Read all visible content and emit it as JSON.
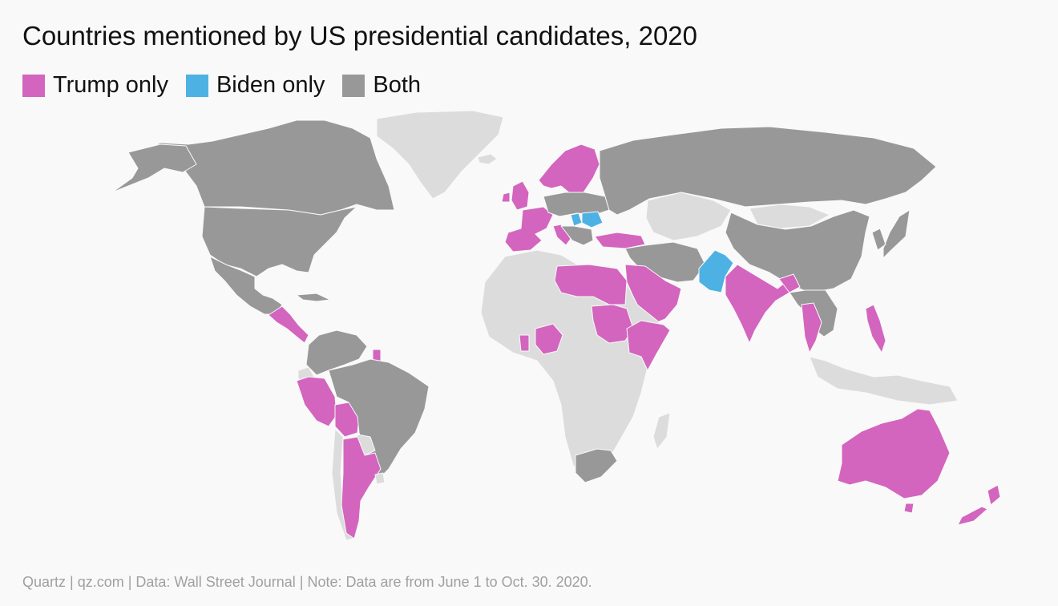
{
  "title": "Countries mentioned by US presidential candidates, 2020",
  "legend": [
    {
      "label": "Trump only",
      "color": "#d365be"
    },
    {
      "label": "Biden only",
      "color": "#4eb1e3"
    },
    {
      "label": "Both",
      "color": "#989898"
    }
  ],
  "colors": {
    "trump_only": "#d365be",
    "biden_only": "#4eb1e3",
    "both": "#989898",
    "not_mentioned": "#dcdcdc",
    "background": "#f9f9f9"
  },
  "footer": "Quartz | qz.com | Data: Wall Street Journal | Note: Data are from June 1 to Oct. 30. 2020."
}
